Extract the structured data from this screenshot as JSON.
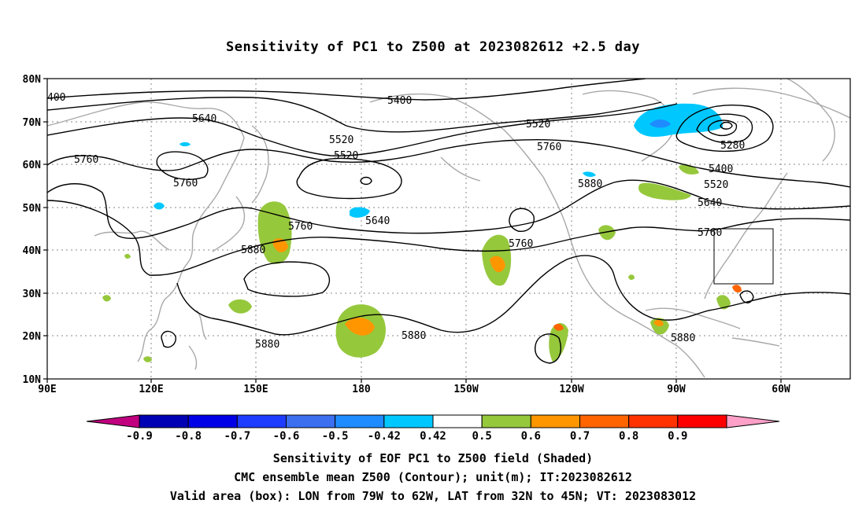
{
  "title": "Sensitivity of PC1 to Z500 at 2023082612 +2.5 day",
  "map": {
    "lon_range": [
      "90E",
      "25W"
    ],
    "lat_range": [
      "10N",
      "80N"
    ],
    "lat_ticks": [
      "10N",
      "20N",
      "30N",
      "40N",
      "50N",
      "60N",
      "70N",
      "80N"
    ],
    "lon_ticks": [
      "90E",
      "120E",
      "150E",
      "180",
      "150W",
      "120W",
      "90W",
      "60W"
    ],
    "contour_labels": [
      "400",
      "5400",
      "5520",
      "5640",
      "5520",
      "5520",
      "5280",
      "5760",
      "5760",
      "5400",
      "5760",
      "5880",
      "5520",
      "5640",
      "5640",
      "5760",
      "5760",
      "5760",
      "5880",
      "5880",
      "5880",
      "5880"
    ],
    "valid_box": {
      "lon_min": "79W",
      "lon_max": "62W",
      "lat_min": "32N",
      "lat_max": "45N"
    }
  },
  "colorbar": {
    "labels": [
      "-0.9",
      "-0.8",
      "-0.7",
      "-0.6",
      "-0.5",
      "-0.42",
      "0.42",
      "0.5",
      "0.6",
      "0.7",
      "0.8",
      "0.9"
    ],
    "colors": [
      "#c0007f",
      "#0000b4",
      "#0000e6",
      "#1e3cff",
      "#3c6ef0",
      "#1e8cff",
      "#00c8ff",
      "#ffffff",
      "#96c83c",
      "#ff9600",
      "#ff6400",
      "#ff3200",
      "#ff0000",
      "#ffa0c8"
    ]
  },
  "captions": [
    "Sensitivity of EOF PC1 to Z500 field (Shaded)",
    "CMC ensemble mean Z500 (Contour); unit(m); IT:2023082612",
    "Valid area (box): LON from 79W to 62W, LAT from 32N to 45N; VT: 2023083012"
  ]
}
